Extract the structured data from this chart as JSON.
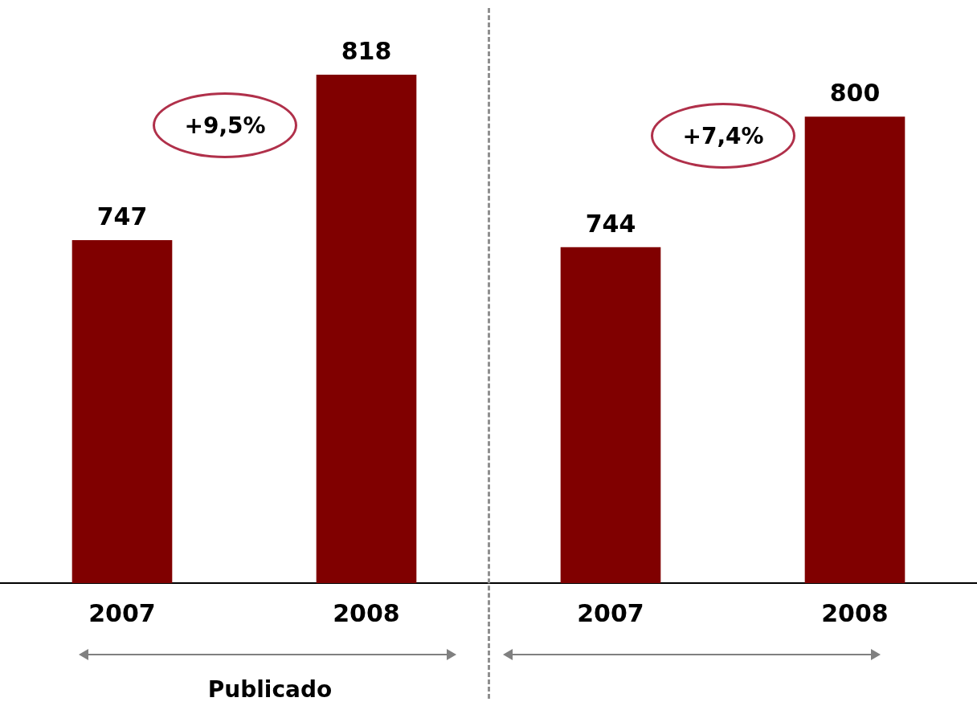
{
  "chart_data": [
    {
      "type": "bar",
      "categories": [
        "2007",
        "2008"
      ],
      "values": [
        747,
        818
      ],
      "color": "#800000",
      "ylim": [
        600,
        850
      ],
      "tick_labels": "x",
      "grid": false,
      "legend": false,
      "data_labels": true,
      "xlabel": "Publicado",
      "annotations": [
        "+9,5%"
      ]
    },
    {
      "type": "bar",
      "categories": [
        "2007",
        "2008"
      ],
      "values": [
        744,
        800
      ],
      "color": "#800000",
      "ylim": [
        600,
        850
      ],
      "tick_labels": "x",
      "grid": false,
      "legend": false,
      "data_labels": true,
      "annotations": [
        "+7,4%"
      ]
    }
  ]
}
